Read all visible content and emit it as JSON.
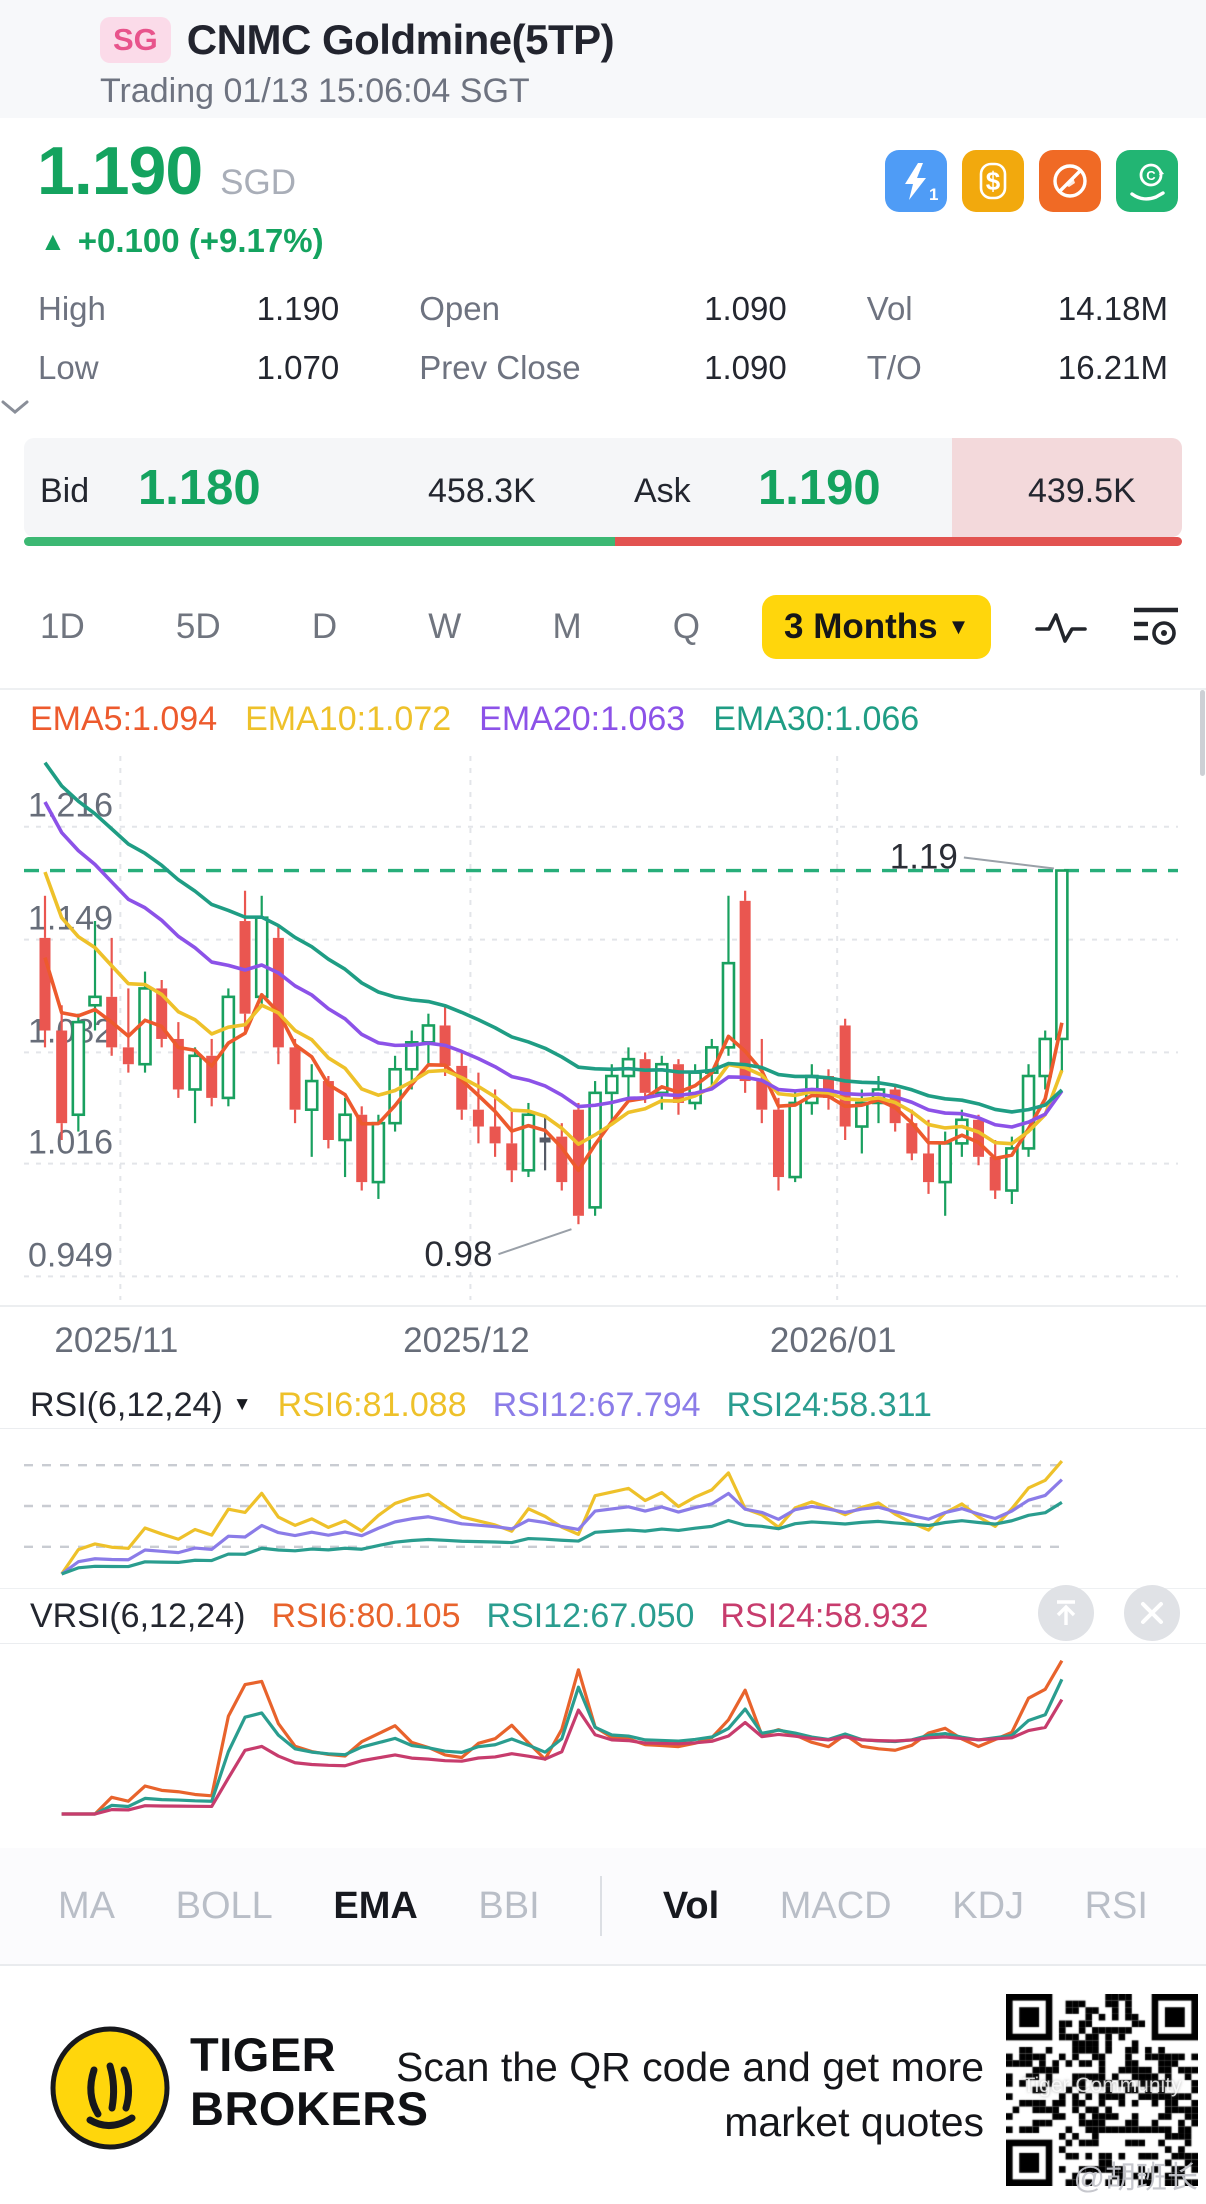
{
  "header": {
    "market_badge": "SG",
    "title": "CNMC Goldmine(5TP)",
    "subtitle": "Trading 01/13 15:06:04 SGT"
  },
  "quote": {
    "price": "1.190",
    "currency": "SGD",
    "change_arrow": "▲",
    "change": "+0.100 (+9.17%)",
    "stats": [
      {
        "label": "High",
        "value": "1.190"
      },
      {
        "label": "Open",
        "value": "1.090"
      },
      {
        "label": "Vol",
        "value": "14.18M"
      },
      {
        "label": "Low",
        "value": "1.070"
      },
      {
        "label": "Prev Close",
        "value": "1.090"
      },
      {
        "label": "T/O",
        "value": "16.21M"
      }
    ],
    "badges": [
      {
        "name": "lightning-order",
        "color": "#4f9cf6"
      },
      {
        "name": "dollar-cash",
        "color": "#f2a90d"
      },
      {
        "name": "restricted",
        "color": "#f06a25"
      },
      {
        "name": "coin-hand",
        "color": "#22b573"
      }
    ]
  },
  "bid_ask": {
    "bid_label": "Bid",
    "bid_price": "1.180",
    "bid_size": "458.3K",
    "ask_label": "Ask",
    "ask_price": "1.190",
    "ask_size": "439.5K",
    "bid_ratio": 0.51
  },
  "period_bar": {
    "tabs": [
      "1D",
      "5D",
      "D",
      "W",
      "M",
      "Q"
    ],
    "selected_label": "3 Months",
    "caret": "▼"
  },
  "chart_data": {
    "type": "candlestick",
    "legend": [
      {
        "label": "EMA5:1.094",
        "color": "#ed5a2d"
      },
      {
        "label": "EMA10:1.072",
        "color": "#eec12a"
      },
      {
        "label": "EMA20:1.063",
        "color": "#8c52e8"
      },
      {
        "label": "EMA30:1.066",
        "color": "#1f9d84"
      }
    ],
    "y_ticks": [
      1.216,
      1.149,
      1.082,
      1.016,
      0.949
    ],
    "ylim": [
      0.935,
      1.258
    ],
    "dashed_level": 1.19,
    "x_labels": [
      {
        "label": "2025/11",
        "index": 5
      },
      {
        "label": "2025/12",
        "index": 26
      },
      {
        "label": "2026/01",
        "index": 48
      }
    ],
    "annotations": [
      {
        "text": "1.19",
        "index": 61,
        "at": "high"
      },
      {
        "text": "0.98",
        "index": 32,
        "at": "low"
      }
    ],
    "ema_periods": [
      5,
      10,
      20,
      30
    ],
    "ema_seeds": [
      1.16,
      1.21,
      1.245,
      1.265
    ],
    "candles": [
      [
        1.15,
        1.175,
        1.085,
        1.095,
        3.2
      ],
      [
        1.095,
        1.11,
        1.03,
        1.04,
        2.9
      ],
      [
        1.045,
        1.105,
        1.035,
        1.1,
        2.5
      ],
      [
        1.11,
        1.16,
        1.095,
        1.115,
        2.0
      ],
      [
        1.115,
        1.15,
        1.08,
        1.085,
        2.2
      ],
      [
        1.085,
        1.12,
        1.07,
        1.075,
        1.7
      ],
      [
        1.075,
        1.13,
        1.07,
        1.12,
        1.9
      ],
      [
        1.12,
        1.125,
        1.085,
        1.09,
        1.6
      ],
      [
        1.09,
        1.1,
        1.055,
        1.06,
        1.5
      ],
      [
        1.06,
        1.085,
        1.04,
        1.08,
        1.3
      ],
      [
        1.08,
        1.09,
        1.05,
        1.055,
        1.2
      ],
      [
        1.055,
        1.12,
        1.05,
        1.115,
        2.7
      ],
      [
        1.16,
        1.178,
        1.095,
        1.105,
        4.9
      ],
      [
        1.115,
        1.175,
        1.11,
        1.162,
        5.3
      ],
      [
        1.15,
        1.158,
        1.075,
        1.085,
        3.7
      ],
      [
        1.085,
        1.09,
        1.04,
        1.048,
        2.3
      ],
      [
        1.048,
        1.075,
        1.02,
        1.065,
        1.9
      ],
      [
        1.065,
        1.068,
        1.025,
        1.03,
        1.7
      ],
      [
        1.03,
        1.055,
        1.008,
        1.045,
        1.6
      ],
      [
        1.045,
        1.05,
        1.0,
        1.005,
        2.1
      ],
      [
        1.005,
        1.045,
        0.995,
        1.04,
        2.4
      ],
      [
        1.04,
        1.08,
        1.035,
        1.072,
        2.7
      ],
      [
        1.072,
        1.095,
        1.06,
        1.088,
        2.1
      ],
      [
        1.088,
        1.105,
        1.075,
        1.098,
        1.9
      ],
      [
        1.098,
        1.11,
        1.068,
        1.074,
        1.6
      ],
      [
        1.074,
        1.082,
        1.042,
        1.048,
        1.5
      ],
      [
        1.048,
        1.07,
        1.028,
        1.038,
        1.8
      ],
      [
        1.038,
        1.06,
        1.02,
        1.028,
        1.9
      ],
      [
        1.028,
        1.048,
        1.005,
        1.012,
        2.2
      ],
      [
        1.012,
        1.052,
        1.008,
        1.045,
        1.8
      ],
      [
        1.03,
        1.045,
        1.012,
        1.03,
        1.3
      ],
      [
        1.032,
        1.04,
        1.0,
        1.005,
        2.0
      ],
      [
        1.048,
        1.052,
        0.98,
        0.985,
        9.0
      ],
      [
        0.99,
        1.065,
        0.985,
        1.058,
        4.0
      ],
      [
        1.058,
        1.075,
        1.04,
        1.068,
        2.6
      ],
      [
        1.068,
        1.085,
        1.055,
        1.078,
        2.4
      ],
      [
        1.078,
        1.082,
        1.052,
        1.058,
        1.7
      ],
      [
        1.058,
        1.08,
        1.048,
        1.075,
        1.6
      ],
      [
        1.075,
        1.078,
        1.045,
        1.052,
        1.5
      ],
      [
        1.052,
        1.075,
        1.048,
        1.07,
        1.7
      ],
      [
        1.07,
        1.09,
        1.062,
        1.085,
        2.0
      ],
      [
        1.085,
        1.175,
        1.08,
        1.135,
        3.1
      ],
      [
        1.172,
        1.178,
        1.058,
        1.065,
        6.5
      ],
      [
        1.065,
        1.09,
        1.04,
        1.048,
        2.8
      ],
      [
        1.048,
        1.055,
        1.0,
        1.008,
        3.4
      ],
      [
        1.008,
        1.06,
        1.005,
        1.052,
        2.9
      ],
      [
        1.052,
        1.075,
        1.045,
        1.068,
        2.2
      ],
      [
        1.068,
        1.072,
        1.048,
        1.055,
        1.8
      ],
      [
        1.098,
        1.102,
        1.03,
        1.038,
        2.6
      ],
      [
        1.038,
        1.06,
        1.022,
        1.052,
        1.7
      ],
      [
        1.052,
        1.068,
        1.04,
        1.06,
        1.5
      ],
      [
        1.06,
        1.062,
        1.035,
        1.04,
        1.4
      ],
      [
        1.04,
        1.048,
        1.018,
        1.022,
        1.6
      ],
      [
        1.022,
        1.042,
        0.998,
        1.005,
        2.1
      ],
      [
        1.005,
        1.035,
        0.985,
        1.028,
        2.3
      ],
      [
        1.028,
        1.048,
        1.02,
        1.042,
        1.9
      ],
      [
        1.042,
        1.045,
        1.015,
        1.02,
        1.6
      ],
      [
        1.02,
        1.03,
        0.995,
        1.0,
        1.8
      ],
      [
        1.0,
        1.032,
        0.992,
        1.025,
        2.0
      ],
      [
        1.025,
        1.075,
        1.02,
        1.068,
        3.5
      ],
      [
        1.068,
        1.095,
        1.06,
        1.09,
        4.2
      ],
      [
        1.09,
        1.19,
        1.07,
        1.19,
        14.18
      ]
    ],
    "rsi": {
      "label": "RSI(6,12,24)",
      "caret": "▼",
      "periods": [
        6,
        12,
        24
      ],
      "levels": [
        80,
        50,
        20
      ],
      "values_text": [
        {
          "label": "RSI6:81.088",
          "color": "#eec12a"
        },
        {
          "label": "RSI12:67.794",
          "color": "#8b7ce8"
        },
        {
          "label": "RSI24:58.311",
          "color": "#2a9d8f"
        }
      ]
    },
    "vrsi": {
      "label": "VRSI(6,12,24)",
      "periods": [
        6,
        12,
        24
      ],
      "values_text": [
        {
          "label": "RSI6:80.105",
          "color": "#e8632c"
        },
        {
          "label": "RSI12:67.050",
          "color": "#2a9d8f"
        },
        {
          "label": "RSI24:58.932",
          "color": "#c73c6d"
        }
      ]
    },
    "colors": {
      "up": "#19a05f",
      "down": "#ea5650",
      "flat": "#555a66",
      "level": "#27ae7a",
      "grid": "#e3e5e9",
      "axis_text": "#676d79",
      "ema": [
        "#ed5a2d",
        "#eec12a",
        "#8c52e8",
        "#1f9d84"
      ],
      "rsi": [
        "#eec12a",
        "#8b7ce8",
        "#2a9d8f"
      ],
      "vrsi": [
        "#e8632c",
        "#2a9d8f",
        "#c73c6d"
      ]
    }
  },
  "indicator_tabs": {
    "items": [
      "MA",
      "BOLL",
      "EMA",
      "BBI",
      "Vol",
      "MACD",
      "KDJ",
      "RSI"
    ],
    "active": [
      "EMA",
      "Vol"
    ]
  },
  "footer": {
    "brand_line1": "TIGER",
    "brand_line2": "BROKERS",
    "tagline": "Scan the QR code and get more market quotes",
    "qr_watermark": "Tiger Community",
    "user_watermark": "@胡班长"
  }
}
